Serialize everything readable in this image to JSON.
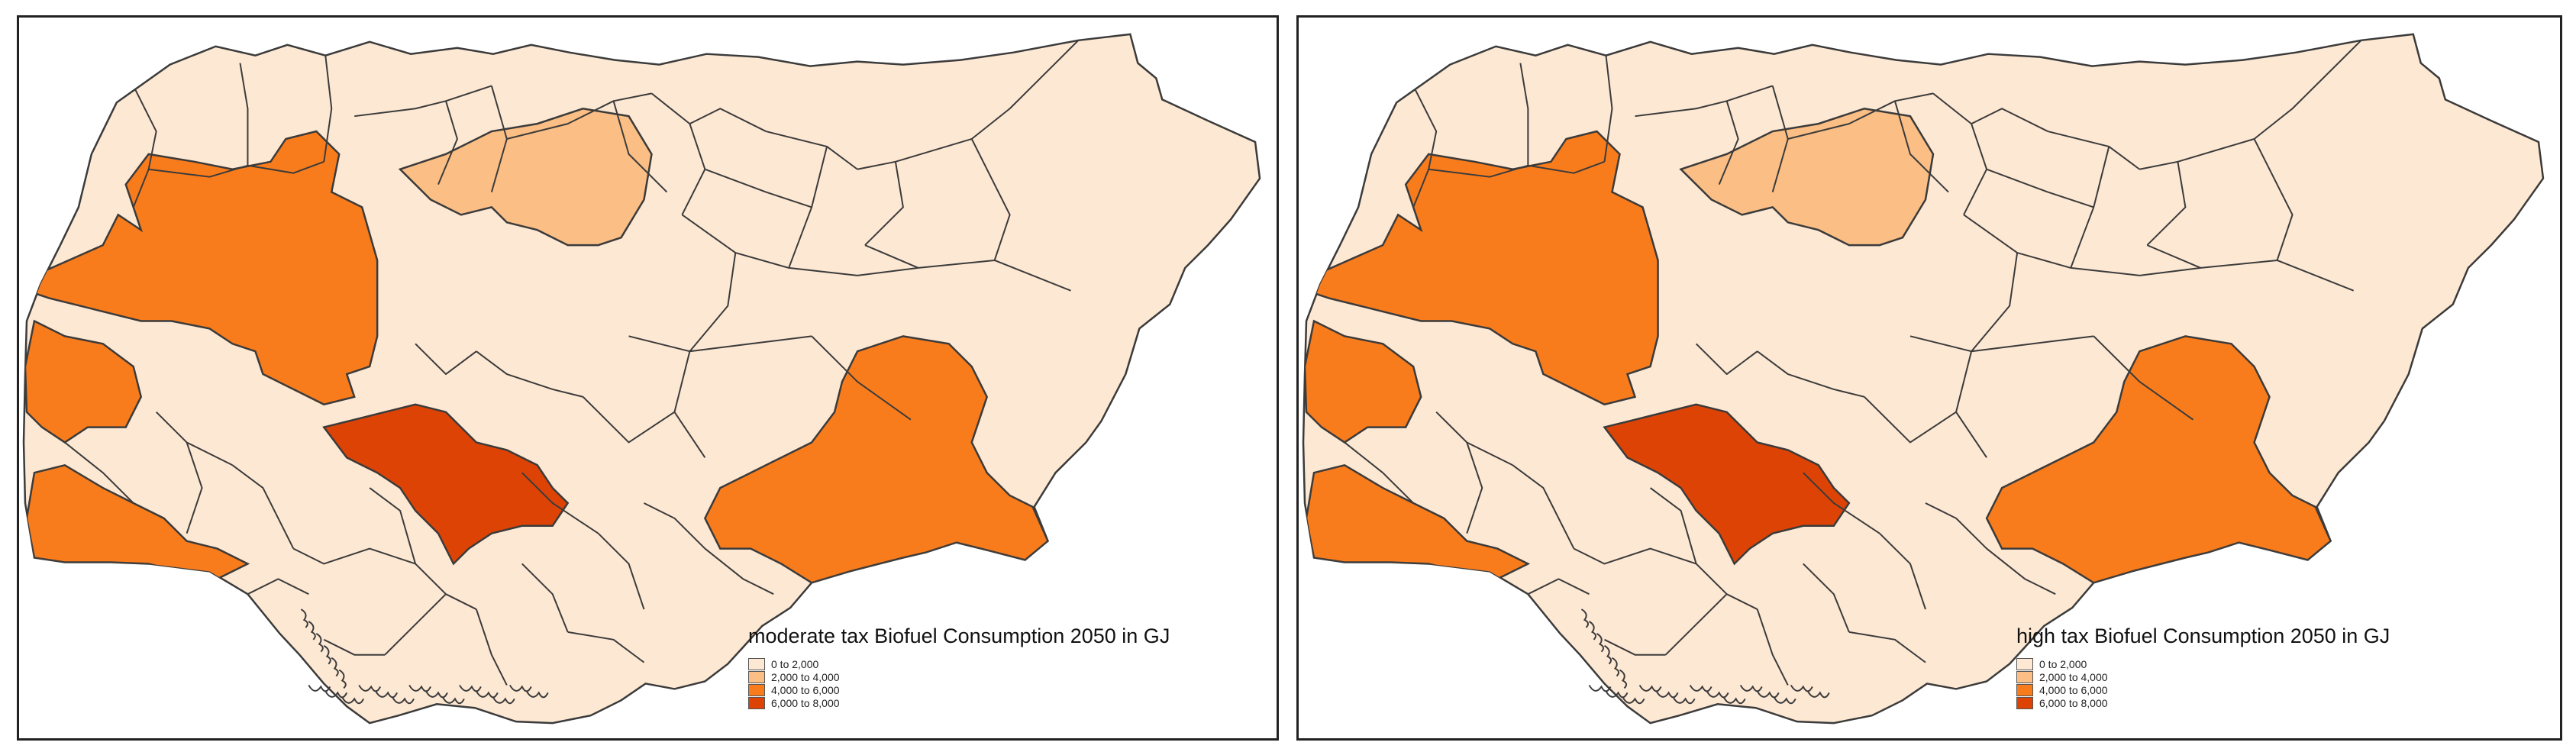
{
  "palette": [
    "#fde8d3",
    "#fbbe85",
    "#f97c1c",
    "#de4306"
  ],
  "border_color": "#3b3b3b",
  "panels": [
    {
      "legend": {
        "title": "moderate tax Biofuel Consumption 2050 in GJ",
        "classes": [
          "0 to 2,000",
          "2,000 to 4,000",
          "4,000 to 6,000",
          "6,000 to 8,000"
        ]
      }
    },
    {
      "legend": {
        "title": "high tax Biofuel Consumption 2050 in GJ",
        "classes": [
          "0 to 2,000",
          "2,000 to 4,000",
          "4,000 to 6,000",
          "6,000 to 8,000"
        ]
      }
    }
  ]
}
